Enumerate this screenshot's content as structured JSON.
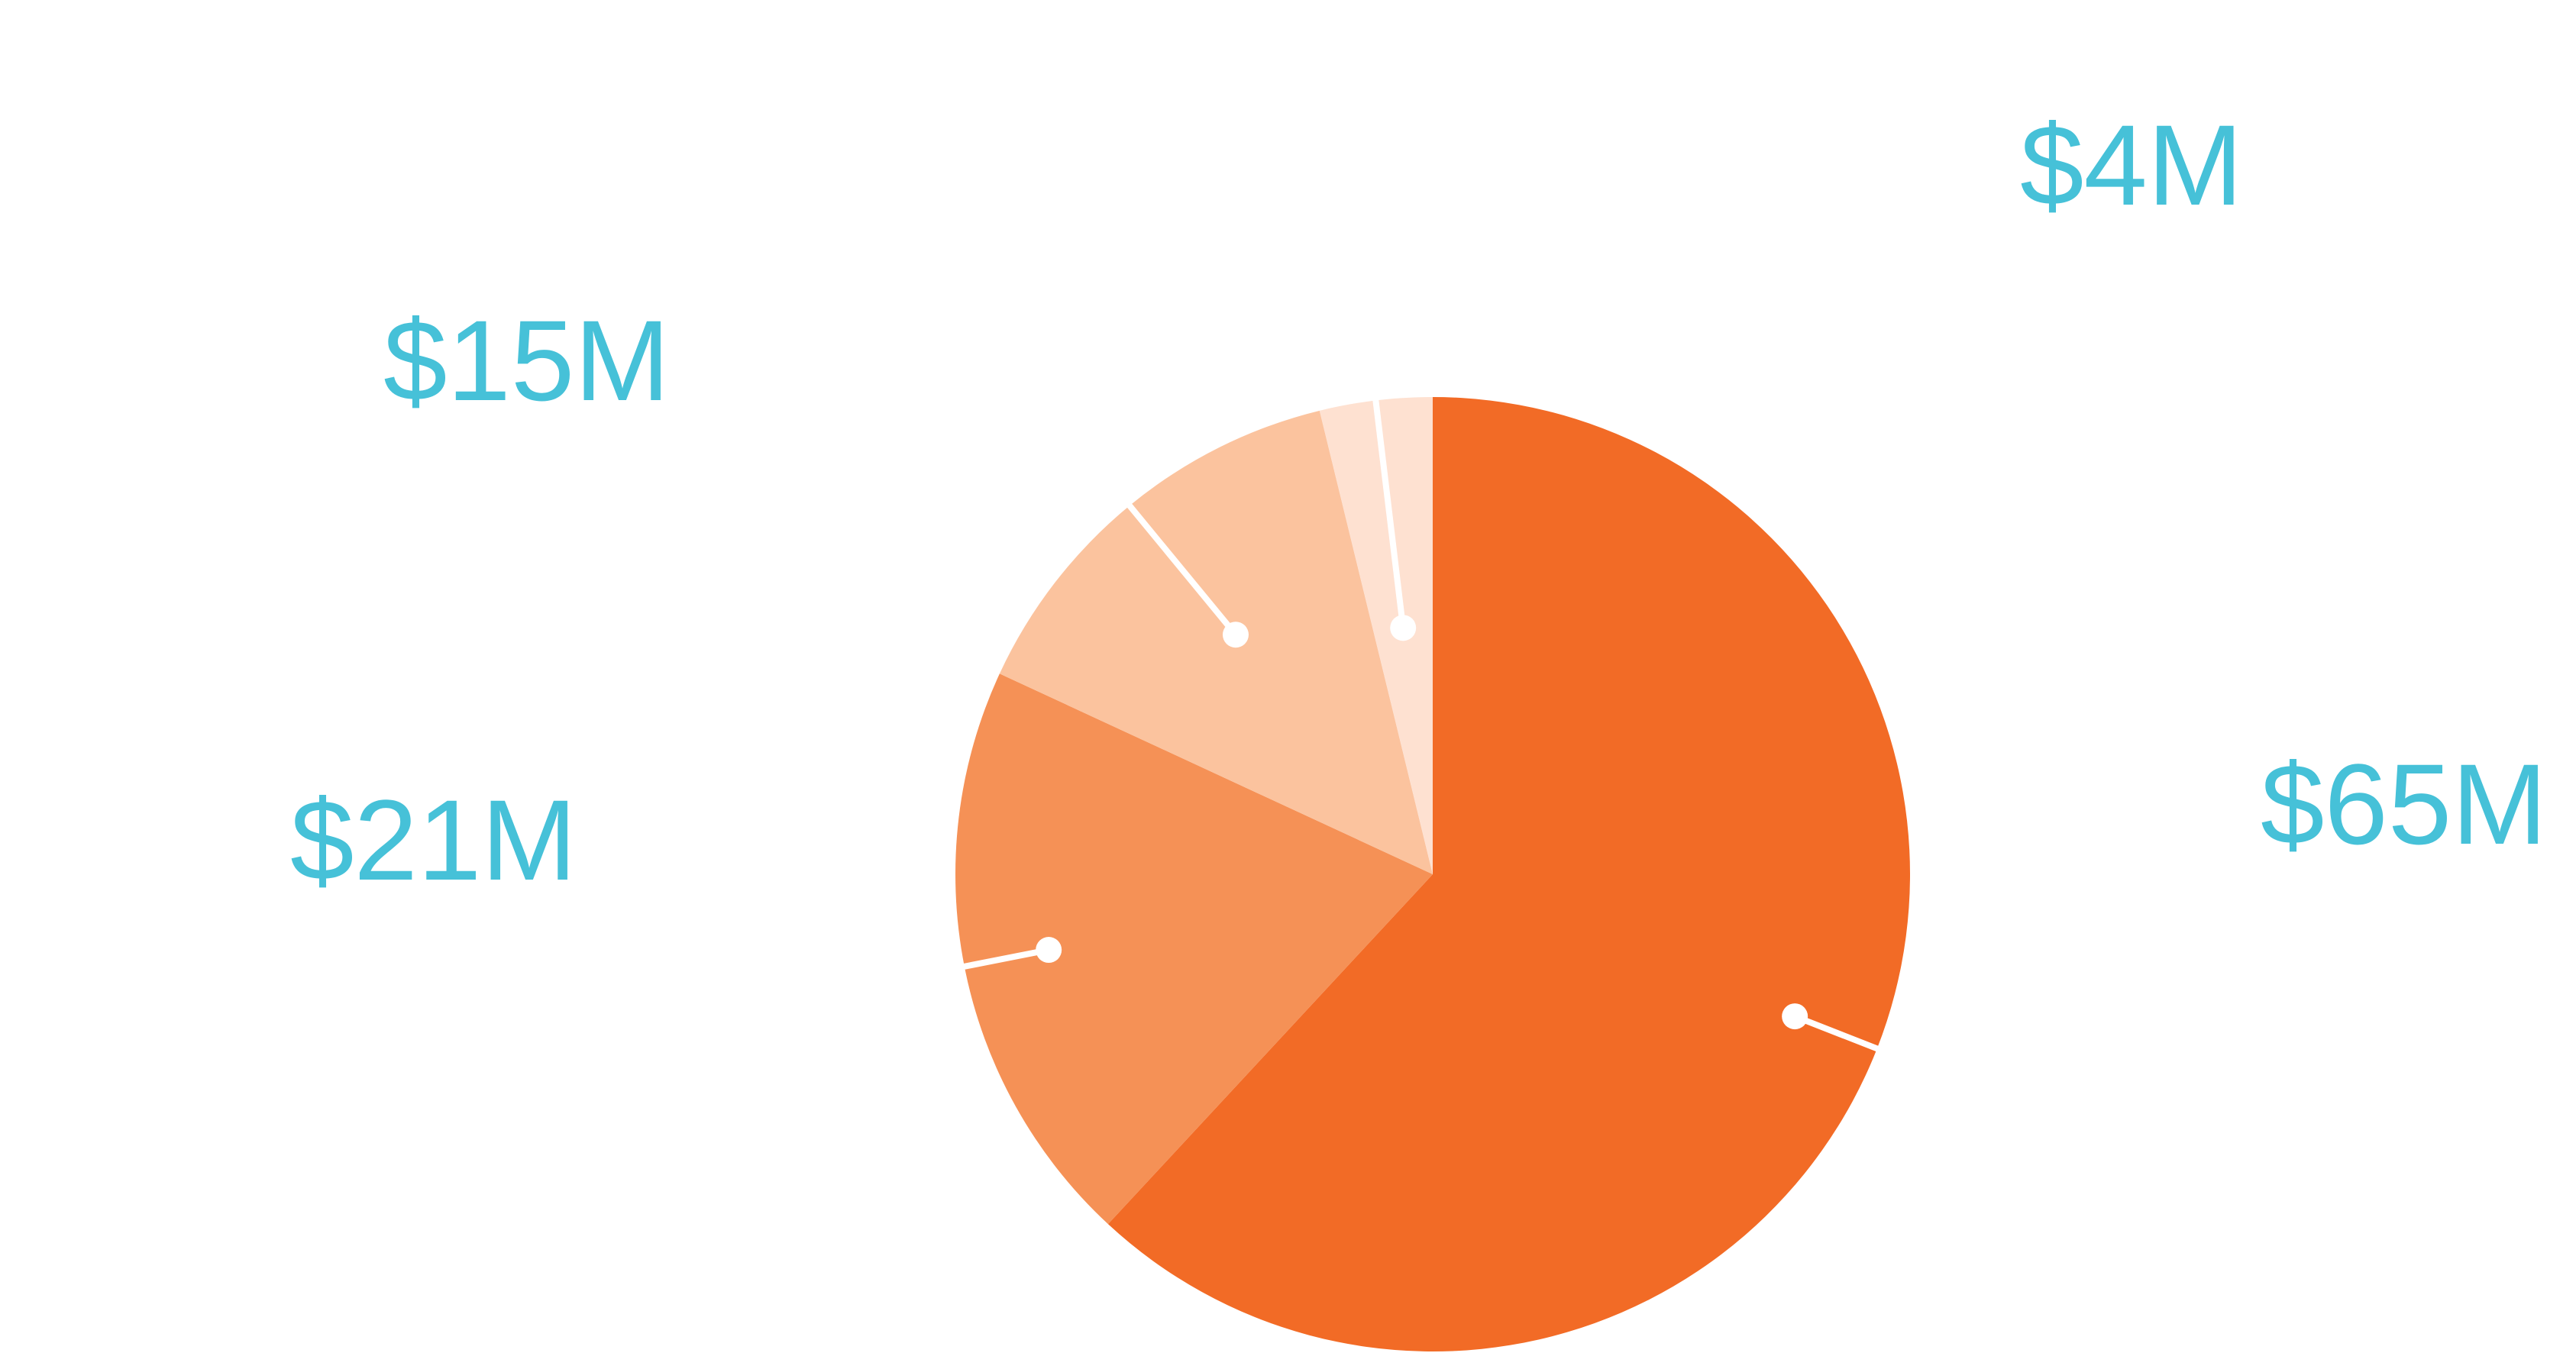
{
  "chart_data": {
    "type": "pie",
    "title": "",
    "start_angle_deg": 0,
    "direction": "clockwise",
    "slices": [
      {
        "label": "$65M",
        "value": 65,
        "color": "#F26B26"
      },
      {
        "label": "$21M",
        "value": 21,
        "color": "#F59156"
      },
      {
        "label": "$15M",
        "value": 15,
        "color": "#FBC39E"
      },
      {
        "label": "$4M",
        "value": 4,
        "color": "#FEE1D1"
      }
    ],
    "label_color": "#46C1D8",
    "leader_color": "#FFFFFF",
    "legend": "none"
  }
}
